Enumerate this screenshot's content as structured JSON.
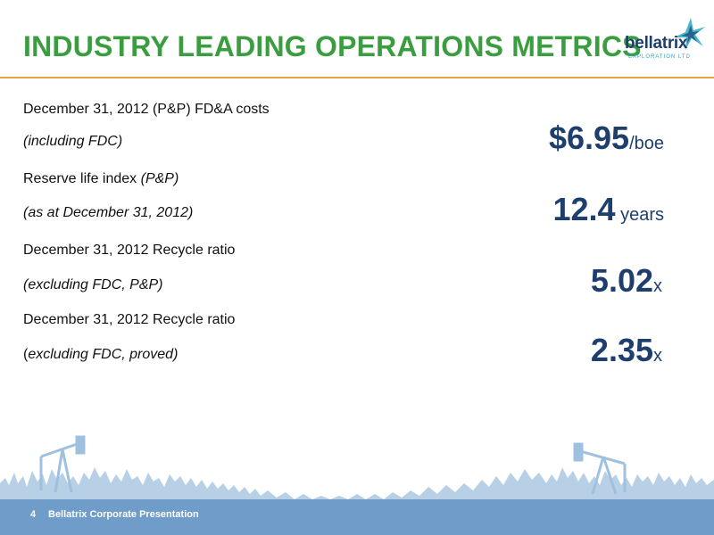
{
  "slide": {
    "title": "INDUSTRY LEADING OPERATIONS METRICS"
  },
  "logo": {
    "word": "bellatrix",
    "subtitle": "EXPLORATION LTD"
  },
  "metrics": [
    {
      "label_line1": "December 31, 2012 (P&P) FD&A costs",
      "label_line2": "(including FDC)",
      "value": "$6.95",
      "unit": "/boe"
    },
    {
      "label_line1_plain": "Reserve life index ",
      "label_line1_italic": "(P&P)",
      "label_line2": "(as at December 31, 2012)",
      "value": "12.4",
      "unit": " years"
    },
    {
      "label_line1": "December 31, 2012 Recycle ratio",
      "label_line2": "(excluding FDC, P&P)",
      "value": "5.02",
      "unit": "x"
    },
    {
      "label_line1": "December 31, 2012 Recycle ratio",
      "label_line2_plain": "(",
      "label_line2_italic": "excluding FDC, proved)",
      "value": "2.35",
      "unit": "x"
    }
  ],
  "footer": {
    "page_number": "4",
    "text": "Bellatrix Corporate Presentation"
  },
  "colors": {
    "title_green": "#3a9d3f",
    "value_navy": "#1e3f6e",
    "rule_orange": "#e8a23c",
    "footer_blue": "#6f9cc8"
  },
  "icons": [
    "star-logo-icon",
    "pumpjack-icon",
    "treeline-decoration"
  ]
}
